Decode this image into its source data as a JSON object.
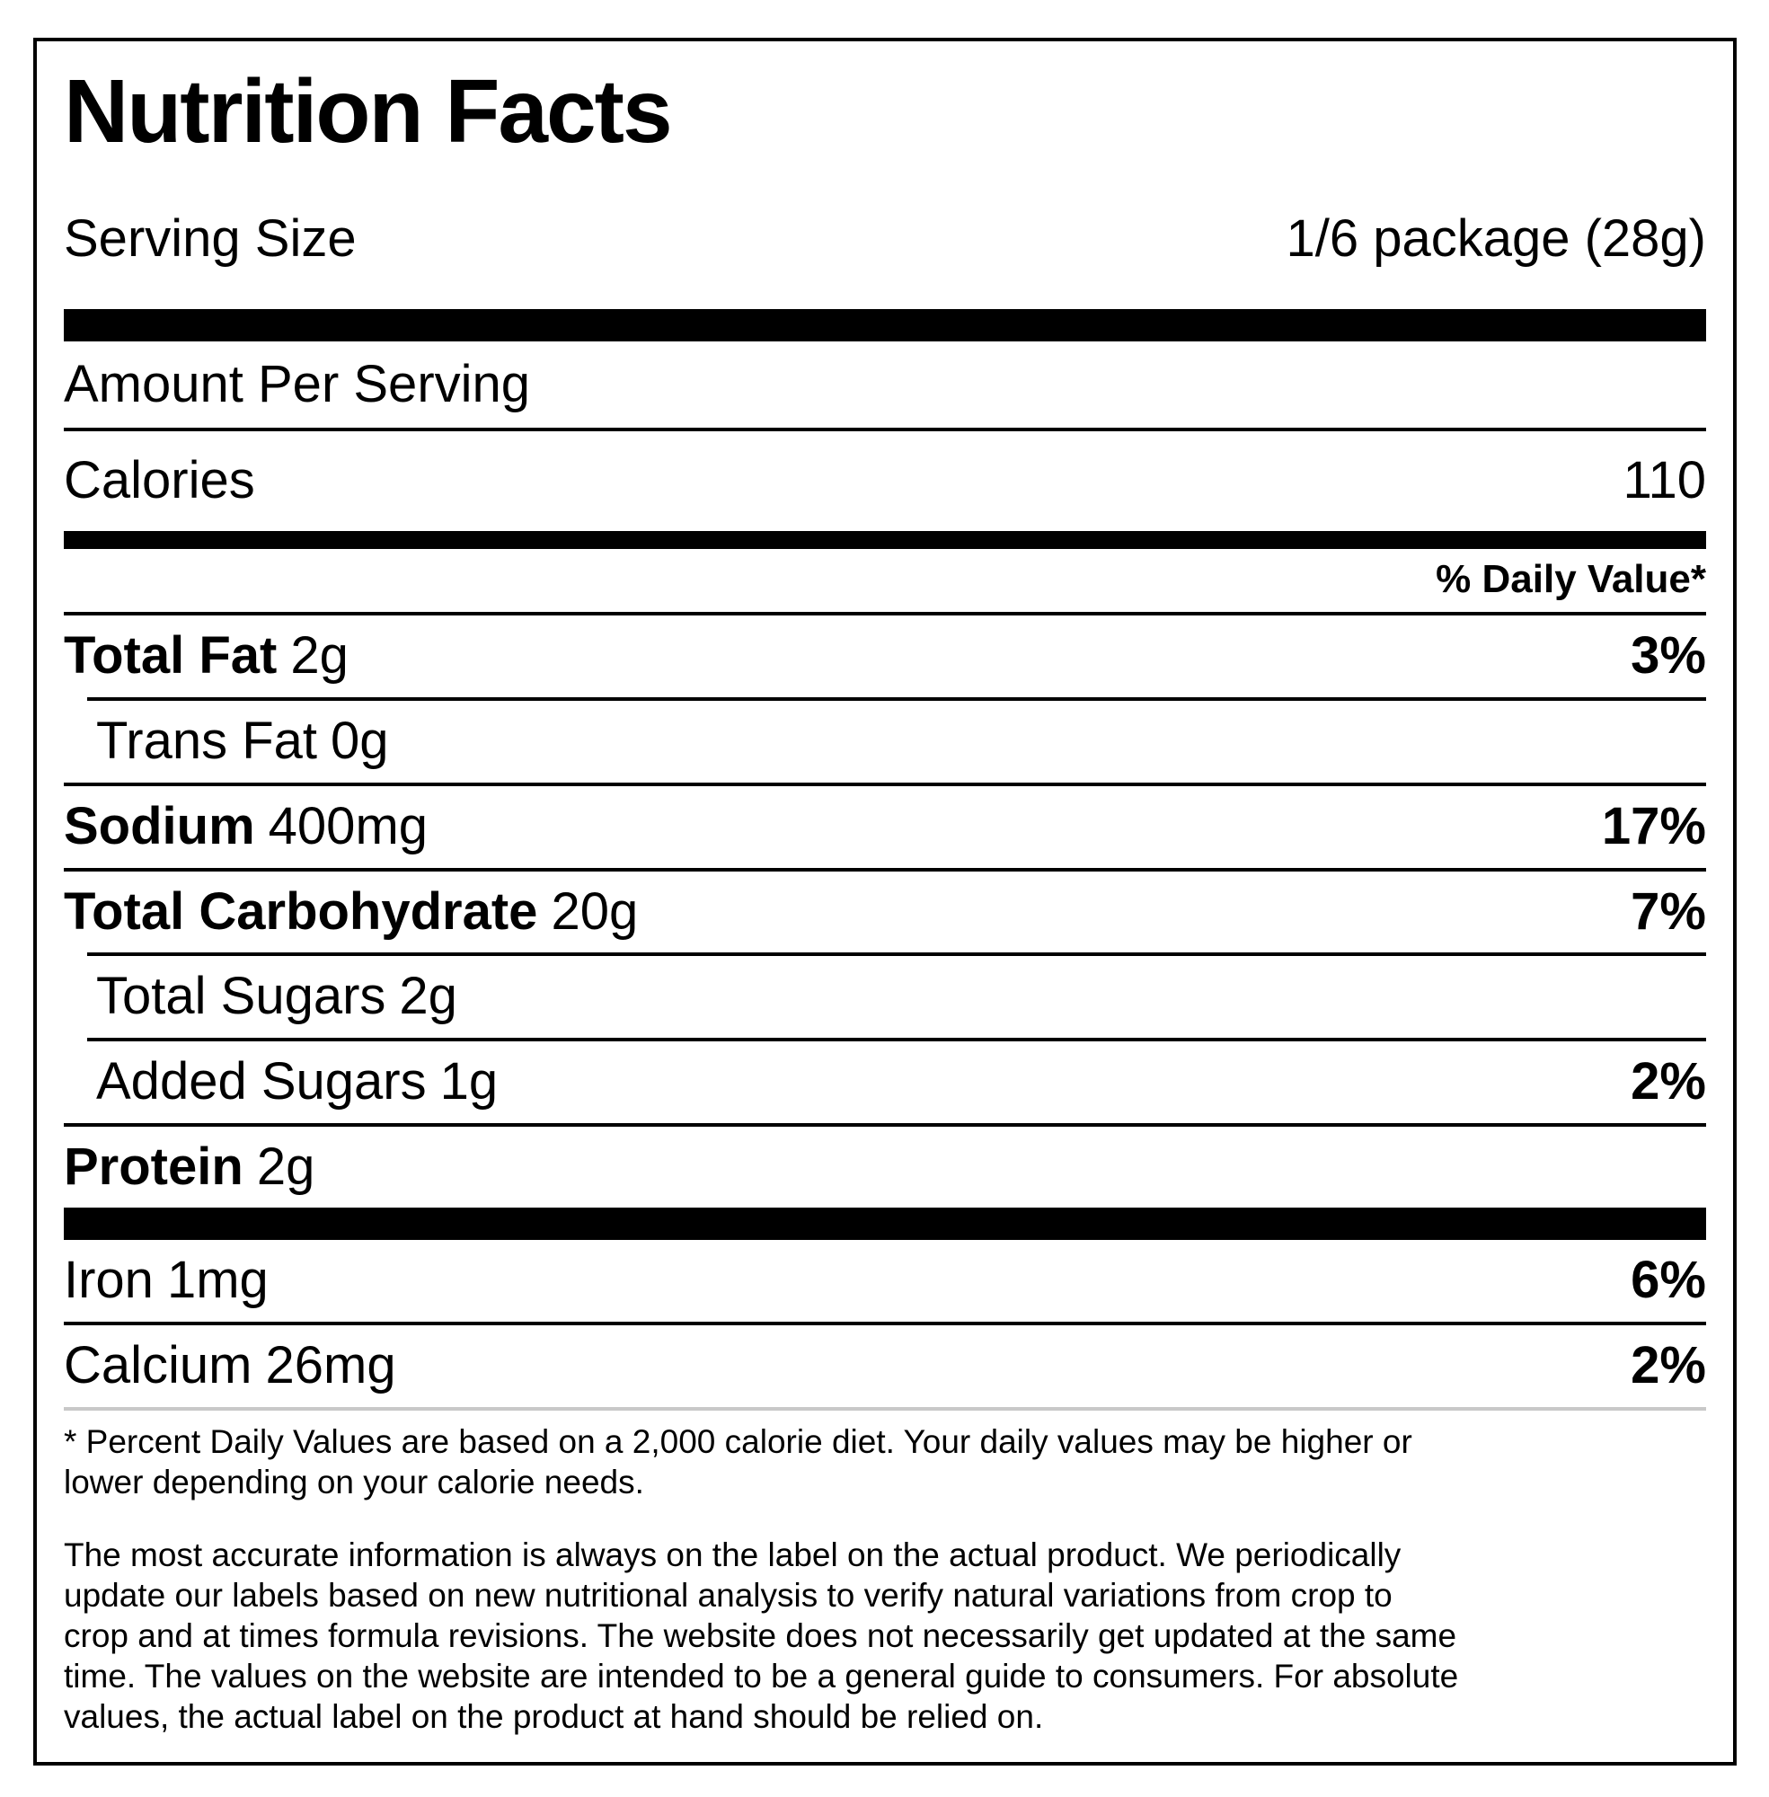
{
  "label": {
    "title": "Nutrition Facts",
    "serving": {
      "label": "Serving Size",
      "value": "1/6 package (28g)"
    },
    "amount_per_serving": "Amount Per Serving",
    "calories": {
      "label": "Calories",
      "value": "110"
    },
    "daily_value_header": "% Daily Value*",
    "nutrients": [
      {
        "name": "Total Fat",
        "amount": "2g",
        "dv": "3%"
      },
      {
        "name": "Trans Fat",
        "amount": "0g",
        "dv": ""
      },
      {
        "name": "Sodium",
        "amount": "400mg",
        "dv": "17%"
      },
      {
        "name": "Total Carbohydrate",
        "amount": "20g",
        "dv": "7%"
      },
      {
        "name": "Total Sugars",
        "amount": "2g",
        "dv": ""
      },
      {
        "name": "Added Sugars",
        "amount": "1g",
        "dv": "2%"
      },
      {
        "name": "Protein",
        "amount": "2g",
        "dv": ""
      },
      {
        "name": "Iron",
        "amount": "1mg",
        "dv": "6%"
      },
      {
        "name": "Calcium",
        "amount": "26mg",
        "dv": "2%"
      }
    ],
    "footnote": "* Percent Daily Values are based on a 2,000 calorie diet. Your daily values may be higher or lower depending on your calorie needs.",
    "disclaimer": "The most accurate information is always on the label on the actual product. We periodically update our labels based on new nutritional analysis to verify natural variations from crop to crop and at times formula revisions. The website does not necessarily get updated at the same time. The values on the website are intended to be a general guide to consumers. For absolute values, the actual label on the product at hand should be relied on.",
    "colors": {
      "text": "#000000",
      "background": "#ffffff",
      "divider_gray": "#c8c8c8"
    }
  }
}
